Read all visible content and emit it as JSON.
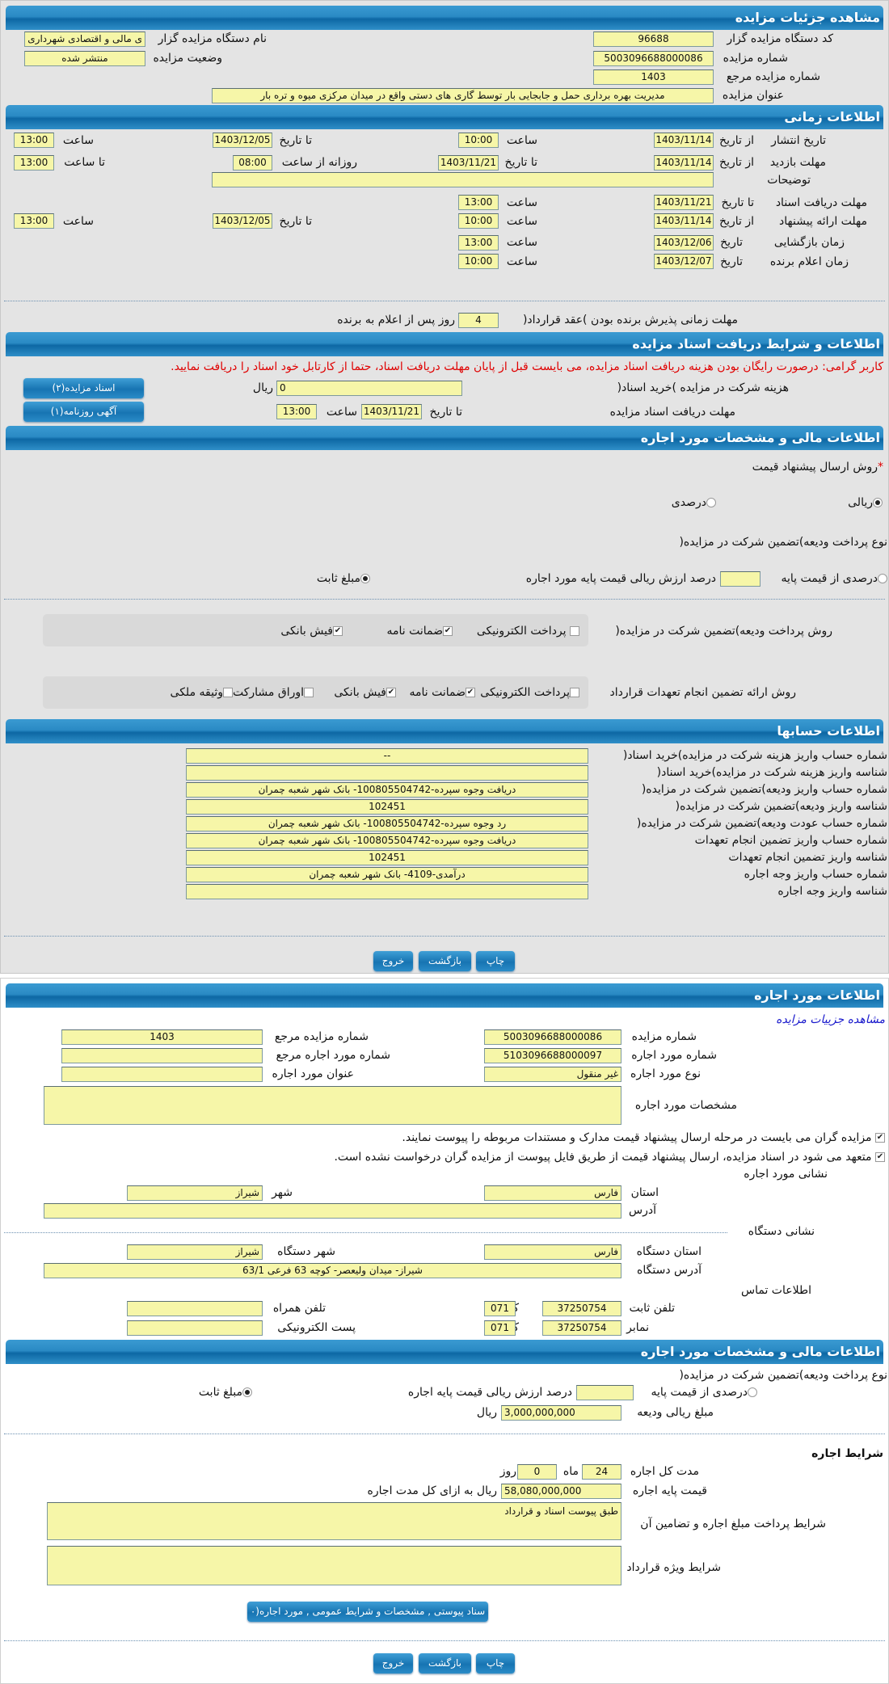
{
  "colors": {
    "header": "#1774b2",
    "field": "#f6f6a8",
    "warning": "#e00000",
    "link": "#1a1acc"
  },
  "auction": {
    "title": "مشاهده جزئیات مزایده",
    "org_code_label": "کد دستگاه مزایده گزار",
    "org_code": "96688",
    "org_name_label": "نام دستگاه مزایده گزار",
    "org_name": "ی مالی و اقتصادی شهرداری",
    "number_label": "شماره مزایده",
    "number": "5003096688000086",
    "status_label": "وضعیت مزایده",
    "status": "منتشر شده",
    "ref_label": "شماره مزایده مرجع",
    "ref": "1403",
    "subject_label": "عنوان مزایده",
    "subject": "مدیریت بهره برداری حمل و جابجایی بار توسط گاری های دستی واقع در میدان مرکزی میوه و تره بار"
  },
  "timing": {
    "title": "اطلاعات زمانی",
    "from_date": "از تاریخ",
    "to_date": "تا تاریخ",
    "date": "تاریخ",
    "hour": "ساعت",
    "to_hour": "تا ساعت",
    "daily_from_hour": "روزانه از ساعت",
    "publish_label": "تاریخ انتشار",
    "publish_from": "1403/11/14",
    "publish_from_time": "10:00",
    "publish_to": "1403/12/05",
    "publish_to_time": "13:00",
    "visit_label": "مهلت بازدید",
    "visit_from": "1403/11/14",
    "visit_to": "1403/11/21",
    "visit_daily_from": "08:00",
    "visit_to_time": "13:00",
    "notes_label": "توضیحات",
    "notes": "",
    "docs_label": "مهلت دریافت اسناد",
    "docs_to": "1403/11/21",
    "docs_to_time": "13:00",
    "offer_label": "مهلت ارائه پیشنهاد",
    "offer_from": "1403/11/14",
    "offer_from_time": "10:00",
    "offer_to": "1403/12/05",
    "offer_to_time": "13:00",
    "opening_label": "زمان بازگشایی",
    "opening_date": "1403/12/06",
    "opening_time": "13:00",
    "winner_label": "زمان اعلام برنده",
    "winner_date": "1403/12/07",
    "winner_time": "10:00",
    "accept_label": "مهلت زمانی پذیرش برنده بودن )عقد قرارداد(",
    "accept_days": "4",
    "accept_suffix": "روز پس از اعلام به برنده"
  },
  "docs": {
    "title": "اطلاعات و شرایط دریافت اسناد مزایده",
    "warning": "کاربر گرامی: درصورت رایگان بودن هزینه دریافت اسناد مزایده، می بایست قبل از پایان مهلت دریافت اسناد، حتما از کارتابل خود اسناد را دریافت نمایید.",
    "fee_label": "هزینه شرکت در مزایده )خرید اسناد(",
    "fee": "0",
    "currency": "ریال",
    "deadline_label": "مهلت دریافت اسناد مزایده",
    "to_date": "تا تاریخ",
    "deadline_date": "1403/11/21",
    "hour": "ساعت",
    "deadline_time": "13:00",
    "btn_docs": "اسناد مزایده(۲)",
    "btn_ad": "آگهی روزنامه(۱)"
  },
  "finance": {
    "title": "اطلاعات مالی و مشخصات مورد اجاره",
    "method_label": "روش ارسال پیشنهاد قیمت",
    "required_mark": "*",
    "opt_rial": "ریالی",
    "opt_percent": "درصدی",
    "method_selected": "ریالی",
    "deposit_type_label": "نوع پرداخت ودیعه)تضمین شرکت در مزایده(",
    "opt_percent_base": "درصدی از قیمت پایه",
    "percent_value": "",
    "percent_suffix": "درصد ارزش ریالی قیمت پایه مورد اجاره",
    "opt_fixed": "مبلغ ثابت",
    "deposit_type_selected": "مبلغ ثابت",
    "pay_method_label": "روش پرداخت ودیعه)تضمین شرکت در مزایده(",
    "pay_opts": [
      {
        "label": "پرداخت الکترونیکی",
        "checked": false
      },
      {
        "label": "ضمانت نامه",
        "checked": true
      },
      {
        "label": "فیش بانکی",
        "checked": true
      }
    ],
    "guarantee_label": "روش ارائه تضمین انجام تعهدات قرارداد",
    "guarantee_opts": [
      {
        "label": "پرداخت الکترونیکی",
        "checked": false
      },
      {
        "label": "ضمانت نامه",
        "checked": true
      },
      {
        "label": "فیش بانکی",
        "checked": true
      },
      {
        "label": "اوراق مشارکت",
        "checked": false
      },
      {
        "label": "وثیقه ملکی",
        "checked": false
      }
    ],
    "check": "✔"
  },
  "accounts": {
    "title": "اطلاعات حسابها",
    "rows": [
      {
        "label": "شماره حساب واریز هزینه شرکت در مزایده)خرید اسناد(",
        "value": "--"
      },
      {
        "label": "شناسه واریز هزینه شرکت در مزایده)خرید اسناد(",
        "value": ""
      },
      {
        "label": "شماره حساب واریز ودیعه)تضمین شرکت در مزایده(",
        "value": "دریافت وجوه سپرده-100805504742- بانک شهر شعبه چمران"
      },
      {
        "label": "شناسه واریز ودیعه)تضمین شرکت در مزایده(",
        "value": "102451"
      },
      {
        "label": "شماره حساب عودت ودیعه)تضمین شرکت در مزایده(",
        "value": "رد وجوه سپرده-100805504742- بانک شهر شعبه چمران"
      },
      {
        "label": "شماره حساب واریز تضمین انجام تعهدات",
        "value": "دریافت وجوه سپرده-100805504742- بانک شهر شعبه چمران"
      },
      {
        "label": "شناسه واریز تضمین انجام تعهدات",
        "value": "102451"
      },
      {
        "label": "شماره حساب واریز وجه اجاره",
        "value": "درآمدی-4109- بانک شهر شعبه چمران"
      },
      {
        "label": "شناسه واریز وجه اجاره",
        "value": ""
      }
    ]
  },
  "actions": {
    "print": "چاپ",
    "back": "بازگشت",
    "exit": "خروج"
  },
  "lease": {
    "title": "اطلاعات مورد اجاره",
    "link": "مشاهده جزییات مزایده",
    "number_label": "شماره مزایده",
    "number": "5003096688000086",
    "ref_label": "شماره مزایده مرجع",
    "ref": "1403",
    "item_no_label": "شماره مورد اجاره",
    "item_no": "5103096688000097",
    "item_ref_label": "شماره مورد اجاره مرجع",
    "item_ref": "",
    "type_label": "نوع مورد اجاره",
    "type": "غیر منقول",
    "item_title_label": "عنوان مورد اجاره",
    "item_title": "",
    "spec_label": "مشخصات مورد اجاره",
    "spec": "",
    "check1": "مزایده گران می بایست در مرحله ارسال پیشنهاد قیمت مدارک و مستندات مربوطه را پیوست نمایند.",
    "check2": "متعهد می شود در اسناد مزایده، ارسال پیشنهاد قیمت از طریق فایل پیوست از مزایده گران درخواست نشده است.",
    "address_title": "نشانی مورد اجاره",
    "province_label": "استان",
    "province": "فارس",
    "city_label": "شهر",
    "city": "شیراز",
    "address_label": "آدرس",
    "address": "",
    "org_address_title": "نشانی دستگاه",
    "org_province_label": "استان دستگاه",
    "org_province": "فارس",
    "org_city_label": "شهر دستگاه",
    "org_city": "شیراز",
    "org_address_label": "آدرس دستگاه",
    "org_address": "شیراز- میدان ولیعصر- کوچه 63 فرعی 63/1",
    "contact_title": "اطلاعات تماس",
    "phone_label": "تلفن ثابت",
    "phone": "37250754",
    "code_label": "کد",
    "phone_code": "071",
    "mobile_label": "تلفن همراه",
    "mobile": "",
    "fax_label": "نمابر",
    "fax": "37250754",
    "fax_code": "071",
    "email_label": "پست الکترونیکی",
    "email": ""
  },
  "lease_finance": {
    "title": "اطلاعات مالی و مشخصات مورد اجاره",
    "deposit_type_label": "نوع پرداخت ودیعه)تضمین شرکت در مزایده(",
    "opt_percent_base": "درصدی از قیمت پایه",
    "percent_value": "",
    "percent_suffix": "درصد ارزش ریالی قیمت پایه اجاره",
    "opt_fixed": "مبلغ ثابت",
    "deposit_amount_label": "مبلغ ریالی ودیعه",
    "deposit_amount": "3,000,000,000",
    "currency": "ریال",
    "terms_title": "شرایط اجاره",
    "duration_label": "مدت کل اجاره",
    "months": "24",
    "month_unit": "ماه",
    "days": "0",
    "day_unit": "روز",
    "base_price_label": "قیمت پایه اجاره",
    "base_price": "58,080,000,000",
    "base_price_suffix": "ریال به ازای کل مدت اجاره",
    "payment_terms_label": "شرایط پرداخت مبلغ اجاره و تضامین آن",
    "payment_terms": "طبق پیوست اسناد و قرارداد",
    "special_terms_label": "شرایط ویژه قرارداد",
    "special_terms": "",
    "attach_btn": "سناد پیوستی , مشخصات و شرایط عمومی , مورد اجاره(۰"
  }
}
